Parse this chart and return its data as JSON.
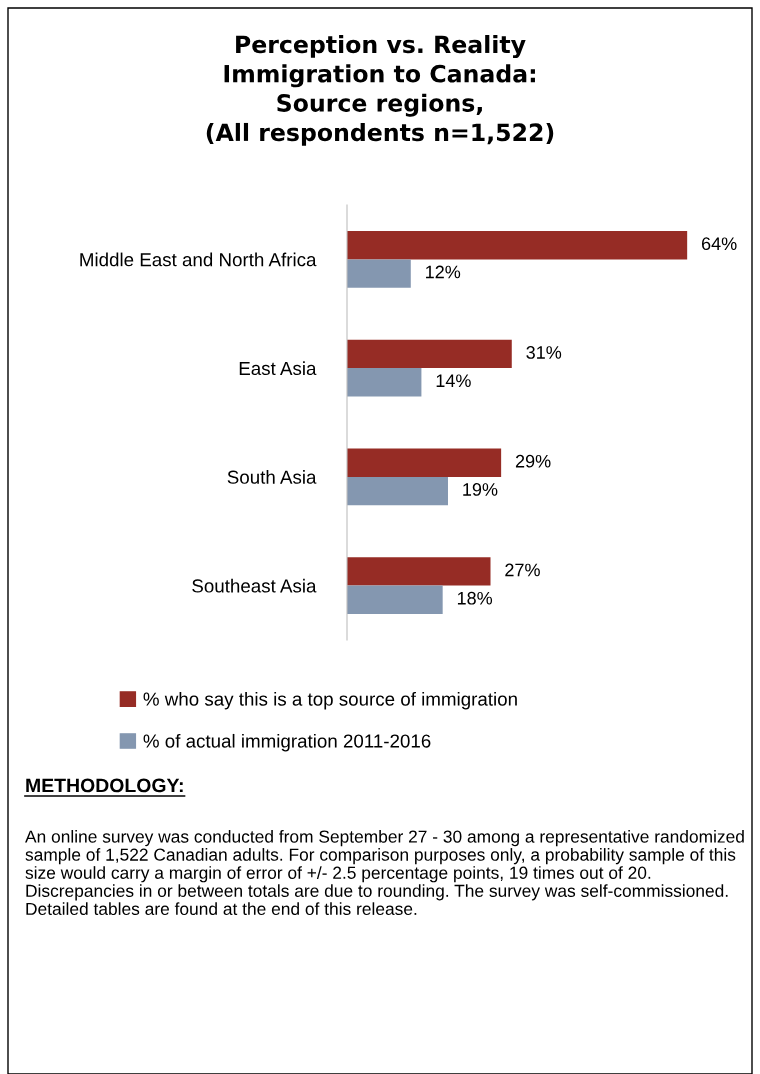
{
  "chart_data": {
    "type": "bar",
    "orientation": "horizontal",
    "title": "Perception vs. Reality\nImmigration to Canada:\nSource regions,\n(All respondents n=1,522)",
    "categories": [
      "Middle East and North Africa",
      "East Asia",
      "South Asia",
      "Southeast Asia"
    ],
    "series": [
      {
        "name": "% who say this is a top source of immigration",
        "color": "#962c25",
        "values": [
          64,
          31,
          29,
          27
        ],
        "value_labels": [
          "64%",
          "31%",
          "29%",
          "27%"
        ]
      },
      {
        "name": "% of actual immigration 2011-2016",
        "color": "#8497b0",
        "values": [
          12,
          14,
          19,
          18
        ],
        "value_labels": [
          "12%",
          "14%",
          "19%",
          "18%"
        ]
      }
    ],
    "tick_labels": "y",
    "grid": false,
    "legend": "bottom",
    "annotations": [
      "METHODOLOGY:",
      "An online survey was conducted from September 27 - 30 among a representative randomized sample of 1,522 Canadian adults. For comparison purposes only, a probability sample of this size would carry a margin of error of +/- 2.5 percentage points, 19 times out of 20. Discrepancies in or between totals are due to rounding. The survey was self-commissioned. Detailed tables are found at the end of this release."
    ]
  }
}
